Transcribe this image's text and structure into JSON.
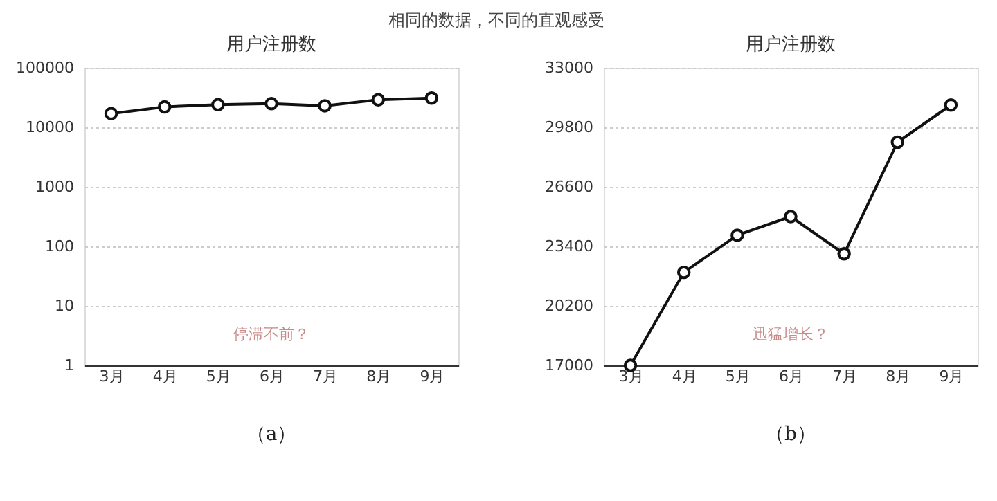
{
  "chart_data": [
    {
      "type": "line",
      "title": "用户注册数",
      "categories": [
        "3月",
        "4月",
        "5月",
        "6月",
        "7月",
        "8月",
        "9月"
      ],
      "series": [
        {
          "color": "#111111",
          "values": [
            17000,
            22000,
            24000,
            25000,
            23000,
            29000,
            31000
          ]
        }
      ],
      "log": true,
      "ylim": [
        1,
        100000
      ],
      "yticks": [
        1,
        10,
        100,
        1000,
        10000,
        100000
      ],
      "grid": "y",
      "marker": "circle",
      "line_style": "solid",
      "annotations": [
        "停滞不前？",
        "（a）",
        "相同的数据，不同的直观感受"
      ]
    },
    {
      "type": "line",
      "title": "用户注册数",
      "categories": [
        "3月",
        "4月",
        "5月",
        "6月",
        "7月",
        "8月",
        "9月"
      ],
      "series": [
        {
          "color": "#111111",
          "values": [
            17000,
            22000,
            24000,
            25000,
            23000,
            29000,
            31000
          ]
        }
      ],
      "ylim": [
        17000,
        33000
      ],
      "yticks": [
        17000,
        20200,
        23400,
        26600,
        29800,
        33000
      ],
      "grid": "y",
      "marker": "circle",
      "line_style": "solid",
      "annotations": [
        "迅猛增长？",
        "（b）"
      ]
    }
  ]
}
